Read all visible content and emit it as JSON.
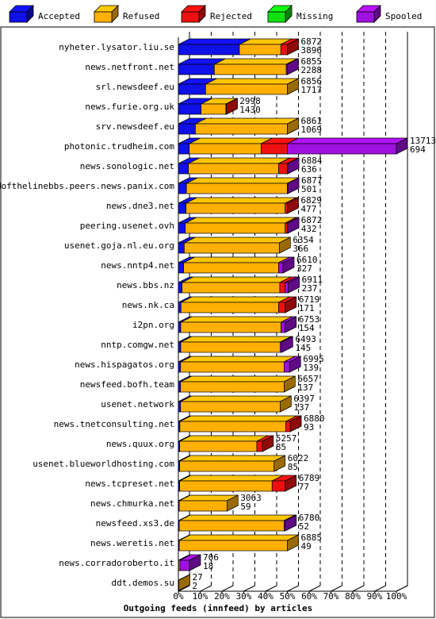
{
  "chart_data": {
    "type": "bar",
    "orientation": "horizontal",
    "stacked": true,
    "title": "",
    "xlabel": "Outgoing feeds (innfeed) by articles",
    "ylabel": "",
    "xlim": [
      0,
      100
    ],
    "x_unit": "%",
    "x_ticks": [
      "0%",
      "10%",
      "20%",
      "30%",
      "40%",
      "50%",
      "60%",
      "70%",
      "80%",
      "90%",
      "100%"
    ],
    "grid": true,
    "legend_position": "top",
    "series": [
      {
        "name": "Accepted",
        "color": "#1010e8"
      },
      {
        "name": "Refused",
        "color": "#ffb000"
      },
      {
        "name": "Rejected",
        "color": "#ee1010"
      },
      {
        "name": "Missing",
        "color": "#10e010"
      },
      {
        "name": "Spooled",
        "color": "#a010e0"
      }
    ],
    "rows": [
      {
        "label": "nyheter.lysator.liu.se",
        "total": "6872",
        "accepted": "3896",
        "pct": [
          28,
          19,
          3,
          0,
          0
        ]
      },
      {
        "label": "news.netfront.net",
        "total": "6855",
        "accepted": "2288",
        "pct": [
          16.5,
          33,
          0,
          0,
          0.5
        ]
      },
      {
        "label": "srl.newsdeef.eu",
        "total": "6856",
        "accepted": "1717",
        "pct": [
          12.5,
          37.5,
          0,
          0,
          0
        ]
      },
      {
        "label": "news.furie.org.uk",
        "total": "2998",
        "accepted": "1430",
        "pct": [
          10.4,
          11.4,
          0.1,
          0,
          0
        ]
      },
      {
        "label": "srv.newsdeef.eu",
        "total": "6861",
        "accepted": "1069",
        "pct": [
          7.8,
          42.2,
          0,
          0,
          0
        ]
      },
      {
        "label": "photonic.trudheim.com",
        "total": "13713",
        "accepted": "694",
        "pct": [
          5,
          33,
          12,
          0,
          50
        ]
      },
      {
        "label": "news.sonologic.net",
        "total": "6884",
        "accepted": "636",
        "pct": [
          4.6,
          41.4,
          4,
          0,
          0.2
        ]
      },
      {
        "label": "endofthelinebbs.peers.news.panix.com",
        "total": "6877",
        "accepted": "501",
        "pct": [
          3.7,
          46.3,
          0,
          0,
          0.2
        ]
      },
      {
        "label": "news.dne3.net",
        "total": "6829",
        "accepted": "477",
        "pct": [
          3.5,
          45.5,
          1,
          0,
          0
        ]
      },
      {
        "label": "peering.usenet.ovh",
        "total": "6872",
        "accepted": "432",
        "pct": [
          3.2,
          45.8,
          1,
          0,
          0.1
        ]
      },
      {
        "label": "usenet.goja.nl.eu.org",
        "total": "6354",
        "accepted": "366",
        "pct": [
          2.7,
          43.6,
          0,
          0,
          0
        ]
      },
      {
        "label": "news.nntp4.net",
        "total": "6610",
        "accepted": "327",
        "pct": [
          2.4,
          43.6,
          0,
          0,
          2
        ]
      },
      {
        "label": "news.bbs.nz",
        "total": "6911",
        "accepted": "237",
        "pct": [
          1.7,
          44.8,
          2.5,
          0,
          1.4
        ]
      },
      {
        "label": "news.nk.ca",
        "total": "6719",
        "accepted": "171",
        "pct": [
          1.2,
          44.8,
          3,
          0,
          0
        ]
      },
      {
        "label": "i2pn.org",
        "total": "6753",
        "accepted": "154",
        "pct": [
          1.1,
          46,
          0,
          0,
          1.9
        ]
      },
      {
        "label": "nntp.comgw.net",
        "total": "6493",
        "accepted": "145",
        "pct": [
          1.1,
          45.6,
          0,
          0,
          0.7
        ]
      },
      {
        "label": "news.hispagatos.org",
        "total": "6995",
        "accepted": "139",
        "pct": [
          1,
          47.5,
          0,
          0,
          2.5
        ]
      },
      {
        "label": "newsfeed.bofh.team",
        "total": "6657",
        "accepted": "137",
        "pct": [
          1,
          47.5,
          0,
          0,
          0
        ]
      },
      {
        "label": "usenet.network",
        "total": "6397",
        "accepted": "137",
        "pct": [
          1,
          45.7,
          0,
          0,
          0
        ]
      },
      {
        "label": "news.tnetconsulting.net",
        "total": "6880",
        "accepted": "93",
        "pct": [
          0.7,
          48.6,
          2,
          0,
          0
        ]
      },
      {
        "label": "news.quux.org",
        "total": "5257",
        "accepted": "85",
        "pct": [
          0.6,
          35.4,
          2.5,
          0,
          0
        ]
      },
      {
        "label": "usenet.blueworldhosting.com",
        "total": "6022",
        "accepted": "85",
        "pct": [
          0.6,
          43.3,
          0,
          0,
          0
        ]
      },
      {
        "label": "news.tcpreset.net",
        "total": "6789",
        "accepted": "77",
        "pct": [
          0.6,
          42.4,
          6,
          0,
          0
        ]
      },
      {
        "label": "news.chmurka.net",
        "total": "3063",
        "accepted": "59",
        "pct": [
          0.4,
          21.9,
          0,
          0,
          0
        ]
      },
      {
        "label": "newsfeed.xs3.de",
        "total": "6780",
        "accepted": "52",
        "pct": [
          0.4,
          48.1,
          0,
          0,
          0.5
        ]
      },
      {
        "label": "news.weretis.net",
        "total": "6885",
        "accepted": "49",
        "pct": [
          0.4,
          49.6,
          0,
          0,
          0
        ]
      },
      {
        "label": "news.corradoroberto.it",
        "total": "706",
        "accepted": "18",
        "pct": [
          0.1,
          0.6,
          0,
          0,
          4.4
        ]
      },
      {
        "label": "ddt.demos.su",
        "total": "27",
        "accepted": "2",
        "pct": [
          0,
          0.2,
          0,
          0,
          0
        ]
      }
    ]
  }
}
